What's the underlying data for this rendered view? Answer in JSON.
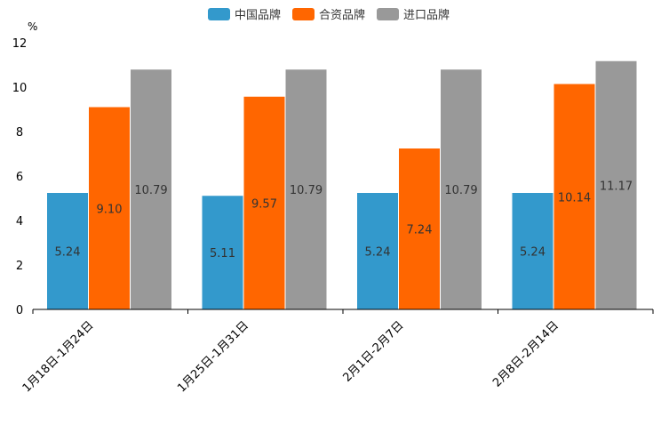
{
  "chart_data": {
    "type": "bar",
    "unit": "%",
    "categories": [
      "1月18日-1月24日",
      "1月25日-1月31日",
      "2月1日-2月7日",
      "2月8日-2月14日"
    ],
    "series": [
      {
        "name": "中国品牌",
        "color": "#3399cc",
        "values": [
          5.24,
          5.11,
          5.24,
          5.24
        ],
        "labels": [
          "5.24",
          "5.11",
          "5.24",
          "5.24"
        ]
      },
      {
        "name": "合资品牌",
        "color": "#ff6600",
        "values": [
          9.1,
          9.57,
          7.24,
          10.14
        ],
        "labels": [
          "9.10",
          "9.57",
          "7.24",
          "10.14"
        ]
      },
      {
        "name": "进口品牌",
        "color": "#999999",
        "values": [
          10.79,
          10.79,
          10.79,
          11.17
        ],
        "labels": [
          "10.79",
          "10.79",
          "10.79",
          "11.17"
        ]
      }
    ],
    "ylim": [
      0,
      12
    ],
    "yticks": [
      0,
      2,
      4,
      6,
      8,
      10,
      12
    ],
    "legend_position": "top-center",
    "grid": false
  }
}
